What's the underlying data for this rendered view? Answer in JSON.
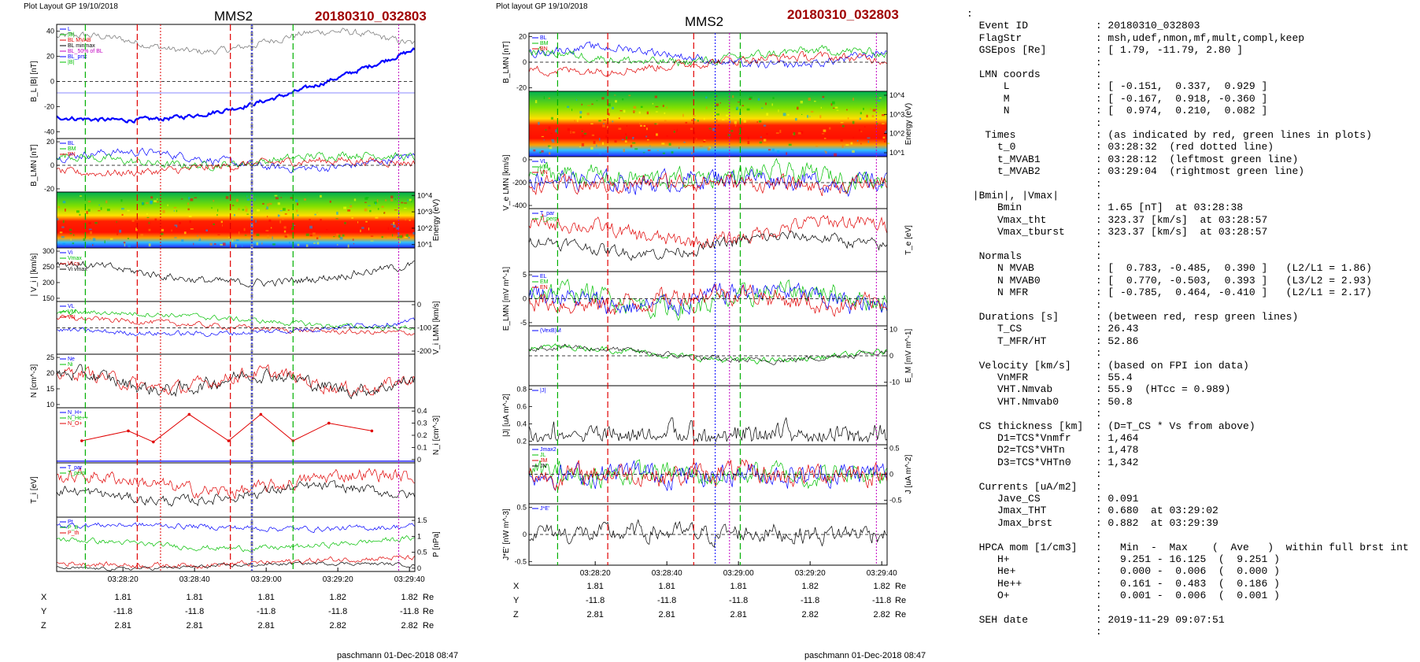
{
  "left_panel": {
    "header": "Plot Layout GP 19/10/2018",
    "probe": "MMS2",
    "event": "20180310_032803",
    "footer": "paschmann 01-Dec-2018 08:47",
    "time_ticks": [
      "03:28:20",
      "03:28:40",
      "03:29:00",
      "03:29:20",
      "03:29:40"
    ],
    "panels": [
      {
        "id": "bl",
        "ylabel": "B_L |B| [nT]",
        "ylim": [
          -40,
          40
        ],
        "ticks": [
          40,
          20,
          0,
          -20,
          -40
        ],
        "side": "left",
        "legend": [
          "L",
          "|B|",
          "BL MVAB",
          "BL minmax",
          "BL_50% of BL",
          "BL_prst",
          "|B|"
        ]
      },
      {
        "id": "blmn",
        "ylabel": "B_LMN [nT]",
        "ylim": [
          -30,
          30
        ],
        "ticks": [
          20,
          0,
          -20
        ],
        "side": "left",
        "legend": [
          "BL",
          "BM",
          "BN"
        ]
      },
      {
        "id": "spec",
        "ylabel": "Energy (eV)",
        "ticks": [
          "10^4",
          "10^3",
          "10^2",
          "10^1"
        ],
        "side": "right",
        "legend": []
      },
      {
        "id": "vi",
        "ylabel": "| V_i | [km/s]",
        "ylim": [
          150,
          320
        ],
        "ticks": [
          300,
          250,
          200,
          150
        ],
        "side": "left",
        "legend": [
          "Vi",
          "Vmax",
          "Vi cs",
          "Vi vmax"
        ]
      },
      {
        "id": "vlmn",
        "ylabel": "V_i LMN [km/s]",
        "ylim": [
          -250,
          50
        ],
        "ticks": [
          0,
          -100,
          -200
        ],
        "side": "right",
        "legend": [
          "VL",
          "VM",
          "VN"
        ]
      },
      {
        "id": "n",
        "ylabel": "N [cm^-3]",
        "ylim": [
          8,
          26
        ],
        "ticks": [
          25,
          20,
          15,
          10
        ],
        "side": "left",
        "legend": [
          "Ne",
          "Ni"
        ]
      },
      {
        "id": "nhpca",
        "ylabel": "N_i [cm^-3]",
        "ylim": [
          0,
          0.45
        ],
        "ticks": [
          0.4,
          0.3,
          0.2,
          0.1,
          0.0
        ],
        "side": "right",
        "legend": [
          "N_H+",
          "N_He++",
          "N_O+"
        ]
      },
      {
        "id": "ti",
        "ylabel": "T_i [eV]",
        "ylim": [
          0,
          1
        ],
        "ticks": [],
        "side": "left",
        "legend": [
          "T_par",
          "T_perp"
        ]
      },
      {
        "id": "p",
        "ylabel": "P [nPa]",
        "ylim": [
          0,
          1.7
        ],
        "ticks": [
          1.5,
          1.0,
          0.5,
          0.0
        ],
        "side": "right",
        "legend": [
          "Pt",
          "P_B",
          "P_th"
        ]
      }
    ],
    "coords": {
      "rows": [
        {
          "label": "X",
          "values": [
            "1.81",
            "1.81",
            "1.81",
            "1.82",
            "1.82"
          ],
          "unit": "Re"
        },
        {
          "label": "Y",
          "values": [
            "-11.8",
            "-11.8",
            "-11.8",
            "-11.8",
            "-11.8"
          ],
          "unit": "Re"
        },
        {
          "label": "Z",
          "values": [
            "2.81",
            "2.81",
            "2.81",
            "2.82",
            "2.82"
          ],
          "unit": "Re"
        }
      ]
    }
  },
  "right_panel": {
    "header": "Plot layout GP 19/10/2018",
    "probe": "MMS2",
    "event": "20180310_032803",
    "footer": "paschmann 01-Dec-2018 08:47",
    "time_ticks": [
      "03:28:20",
      "03:28:40",
      "03:29:00",
      "03:29:20",
      "03:29:40"
    ],
    "panels": [
      {
        "id": "blmn2",
        "ylabel": "B_LMN [nT]",
        "ylim": [
          -30,
          28
        ],
        "ticks": [
          20,
          0,
          -20
        ],
        "side": "left",
        "legend": [
          "BL",
          "BM",
          "BN"
        ]
      },
      {
        "id": "espec",
        "ylabel": "Energy (eV)",
        "ticks": [
          "10^4",
          "10^3",
          "10^2",
          "10^1"
        ],
        "side": "right",
        "legend": []
      },
      {
        "id": "ve",
        "ylabel": "V_e LMN [km/s]",
        "ylim": [
          -420,
          60
        ],
        "ticks": [
          0,
          -200,
          -400
        ],
        "side": "left",
        "legend": [
          "VL",
          "VM",
          "VN"
        ]
      },
      {
        "id": "te",
        "ylabel": "T_e [eV]",
        "ylim": [
          0,
          1
        ],
        "ticks": [],
        "side": "right",
        "legend": [
          "T_par",
          "T_perp"
        ]
      },
      {
        "id": "elmn",
        "ylabel": "E_LMN [mV m^-1]",
        "ylim": [
          -7,
          8
        ],
        "ticks": [
          5,
          0,
          -5
        ],
        "side": "left",
        "legend": [
          "EL",
          "EM",
          "EN"
        ]
      },
      {
        "id": "em",
        "ylabel": "E_M [mV m^-1]",
        "ylim": [
          -14,
          14
        ],
        "ticks": [
          10,
          0,
          -10
        ],
        "side": "right",
        "legend": [
          "(VexB)M"
        ]
      },
      {
        "id": "j",
        "ylabel": "|J| [uA m^-2]",
        "ylim": [
          0,
          0.85
        ],
        "ticks": [
          0.8,
          0.6,
          0.4,
          0.2
        ],
        "side": "left",
        "legend": [
          "|J|"
        ]
      },
      {
        "id": "jlmn",
        "ylabel": "J [uA m^-2]",
        "ylim": [
          -0.75,
          0.65
        ],
        "ticks": [
          0.5,
          0.0,
          -0.5
        ],
        "side": "right",
        "legend": [
          "Jmax2",
          "JL",
          "JM",
          "JN"
        ]
      },
      {
        "id": "je",
        "ylabel": "J*E' [nW m^-3]",
        "ylim": [
          -0.7,
          0.7
        ],
        "ticks": [
          0.5,
          0.0,
          -0.5
        ],
        "side": "left",
        "legend": [
          "J*E'"
        ]
      }
    ],
    "coords": {
      "rows": [
        {
          "label": "X",
          "values": [
            "1.81",
            "1.81",
            "1.81",
            "1.82",
            "1.82"
          ],
          "unit": "Re"
        },
        {
          "label": "Y",
          "values": [
            "-11.8",
            "-11.8",
            "-11.8",
            "-11.8",
            "-11.8"
          ],
          "unit": "Re"
        },
        {
          "label": "Z",
          "values": [
            "2.81",
            "2.81",
            "2.81",
            "2.82",
            "2.82"
          ],
          "unit": "Re"
        }
      ]
    }
  },
  "info_lines": [
    ":",
    "  Event ID           : 20180310_032803",
    "  FlagStr            : msh,udef,nmon,mf,mult,compl,keep",
    "  GSEpos [Re]        : [ 1.79, -11.79, 2.80 ]",
    "                     :",
    "  LMN coords         :",
    "      L              : [ -0.151,  0.337,  0.929 ]",
    "      M              : [ -0.167,  0.918, -0.360 ]",
    "      N              : [  0.974,  0.210,  0.082 ]",
    "                     :",
    "   Times             : (as indicated by red, green lines in plots)",
    "     t_0             : 03:28:32  (red dotted line)",
    "     t_MVAB1         : 03:28:12  (leftmost green line)",
    "     t_MVAB2         : 03:29:04  (rightmost green line)",
    "                     :",
    " |Bmin|, |Vmax|      :",
    "     Bmin            : 1.65 [nT]  at 03:28:38",
    "     Vmax_tht        : 323.37 [km/s]  at 03:28:57",
    "     Vmax_tburst     : 323.37 [km/s]  at 03:28:57",
    "                     :",
    "  Normals            :",
    "     N MVAB          : [  0.783, -0.485,  0.390 ]   (L2/L1 = 1.86)",
    "     N MVAB0         : [  0.770, -0.503,  0.393 ]   (L3/L2 = 2.93)",
    "     N MFR           : [ -0.785,  0.464, -0.410 ]   (L2/L1 = 2.17)",
    "                     :",
    "  Durations [s]      : (between red, resp green lines)",
    "     T_CS            : 26.43",
    "     T_MFR/HT        : 52.86",
    "                     :",
    "  Velocity [km/s]    : (based on FPI ion data)",
    "     VnMFR           : 55.4",
    "     VHT.Nmvab       : 55.9  (HTcc = 0.989)",
    "     VHT.Nmvab0      : 50.8",
    "                     :",
    "  CS thickness [km]  : (D=T_CS * Vs from above)",
    "     D1=TCS*Vnmfr    : 1,464",
    "     D2=TCS*VHTn     : 1,478",
    "     D3=TCS*VHTn0    : 1,342",
    "                     :",
    "  Currents [uA/m2]   :",
    "     Jave_CS         : 0.091",
    "     Jmax_THT        : 0.680  at 03:29:02",
    "     Jmax_brst       : 0.882  at 03:29:39",
    "                     :",
    "  HPCA mom [1/cm3]   :   Min  -  Max    (  Ave   )  within full brst int",
    "     H+              :   9.251 - 16.125  (  9.251 )",
    "     He+             :   0.000 -  0.006  (  0.000 )",
    "     He++            :   0.161 -  0.483  (  0.186 )",
    "     O+              :   0.001 -  0.006  (  0.001 )",
    "                     :",
    "  SEH date           : 2019-11-29 09:07:51",
    "                     :"
  ],
  "colors": {
    "red": "#e00000",
    "green": "#00c000",
    "blue": "#0000ff",
    "black": "#000000",
    "gray": "#808080",
    "title_red": "#a00000",
    "magenta": "#c000c0"
  }
}
